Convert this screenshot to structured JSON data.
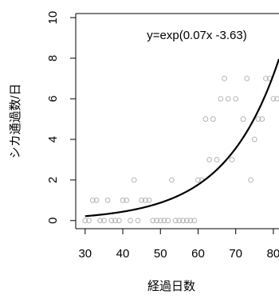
{
  "chart_data": {
    "type": "scatter",
    "title": "",
    "xlabel": "経過日数",
    "ylabel": "シカ通過数/日",
    "xlim": [
      27.5,
      81.5
    ],
    "ylim": [
      -0.4,
      10.2
    ],
    "x_ticks": [
      "30",
      "40",
      "50",
      "60",
      "70",
      "80"
    ],
    "y_ticks": [
      "0",
      "2",
      "4",
      "6",
      "8",
      "10"
    ],
    "grid": false,
    "legend": "none",
    "annotation": "y=exp(0.07x -3.63)",
    "fit": {
      "a": 0.07,
      "b": -3.63,
      "x_range": [
        30,
        81.5
      ],
      "color": "#000000"
    },
    "point_color": "#b4b4b4",
    "points": [
      [
        30,
        0
      ],
      [
        31,
        0
      ],
      [
        32,
        1
      ],
      [
        33,
        1
      ],
      [
        34,
        0
      ],
      [
        35,
        0
      ],
      [
        36,
        1
      ],
      [
        37,
        0
      ],
      [
        38,
        0
      ],
      [
        39,
        0
      ],
      [
        40,
        1
      ],
      [
        41,
        1
      ],
      [
        42,
        0
      ],
      [
        43,
        2
      ],
      [
        44,
        0
      ],
      [
        45,
        1
      ],
      [
        46,
        1
      ],
      [
        47,
        1
      ],
      [
        48,
        0
      ],
      [
        49,
        0
      ],
      [
        50,
        0
      ],
      [
        51,
        0
      ],
      [
        52,
        0
      ],
      [
        53,
        2
      ],
      [
        54,
        0
      ],
      [
        55,
        0
      ],
      [
        56,
        0
      ],
      [
        57,
        0
      ],
      [
        58,
        0
      ],
      [
        59,
        0
      ],
      [
        60,
        2
      ],
      [
        61,
        2
      ],
      [
        62,
        5
      ],
      [
        63,
        3
      ],
      [
        64,
        5
      ],
      [
        65,
        3
      ],
      [
        66,
        6
      ],
      [
        67,
        7
      ],
      [
        68,
        6
      ],
      [
        69,
        3
      ],
      [
        70,
        6
      ],
      [
        72,
        5
      ],
      [
        73,
        7
      ],
      [
        74,
        2
      ],
      [
        75,
        4
      ],
      [
        76,
        5
      ],
      [
        77,
        5
      ],
      [
        78,
        7
      ],
      [
        79,
        7
      ],
      [
        80,
        6
      ],
      [
        81,
        6
      ]
    ]
  }
}
